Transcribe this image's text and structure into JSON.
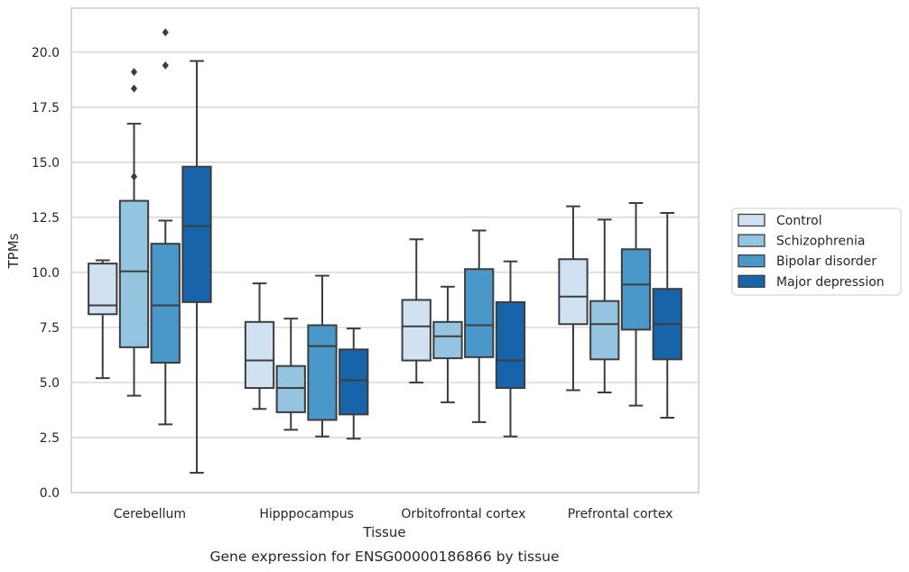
{
  "chart_data": {
    "type": "box",
    "title": "",
    "caption": "Gene expression for ENSG00000186866 by tissue",
    "xlabel": "Tissue",
    "ylabel": "TPMs",
    "ylim": [
      0,
      22
    ],
    "yticks": [
      0.0,
      2.5,
      5.0,
      7.5,
      10.0,
      12.5,
      15.0,
      17.5,
      20.0
    ],
    "ytick_labels": [
      "0.0",
      "2.5",
      "5.0",
      "7.5",
      "10.0",
      "12.5",
      "15.0",
      "17.5",
      "20.0"
    ],
    "grid": "horizontal",
    "legend_placement": "right-center",
    "categories": [
      "Cerebellum",
      "Hipppocampus",
      "Orbitofrontal cortex",
      "Prefrontal cortex"
    ],
    "series": [
      {
        "name": "Control",
        "color": "#d0e1f2",
        "boxes": [
          {
            "whisker_low": 5.2,
            "q1": 8.1,
            "median": 8.5,
            "q3": 10.4,
            "whisker_high": 10.55,
            "outliers": []
          },
          {
            "whisker_low": 3.8,
            "q1": 4.75,
            "median": 6.0,
            "q3": 7.75,
            "whisker_high": 9.5,
            "outliers": []
          },
          {
            "whisker_low": 5.0,
            "q1": 6.0,
            "median": 7.55,
            "q3": 8.75,
            "whisker_high": 11.5,
            "outliers": []
          },
          {
            "whisker_low": 4.65,
            "q1": 7.65,
            "median": 8.9,
            "q3": 10.6,
            "whisker_high": 13.0,
            "outliers": []
          }
        ]
      },
      {
        "name": "Schizophrenia",
        "color": "#94c4df",
        "boxes": [
          {
            "whisker_low": 4.4,
            "q1": 6.6,
            "median": 10.05,
            "q3": 13.25,
            "whisker_high": 16.75,
            "outliers": [
              14.35,
              18.35,
              19.1
            ]
          },
          {
            "whisker_low": 2.85,
            "q1": 3.65,
            "median": 4.75,
            "q3": 5.75,
            "whisker_high": 7.9,
            "outliers": []
          },
          {
            "whisker_low": 4.1,
            "q1": 6.1,
            "median": 7.1,
            "q3": 7.75,
            "whisker_high": 9.35,
            "outliers": []
          },
          {
            "whisker_low": 4.55,
            "q1": 6.05,
            "median": 7.65,
            "q3": 8.7,
            "whisker_high": 12.4,
            "outliers": []
          }
        ]
      },
      {
        "name": "Bipolar disorder",
        "color": "#4a98c9",
        "boxes": [
          {
            "whisker_low": 3.1,
            "q1": 5.9,
            "median": 8.5,
            "q3": 11.3,
            "whisker_high": 12.35,
            "outliers": [
              19.4,
              20.9
            ]
          },
          {
            "whisker_low": 2.55,
            "q1": 3.3,
            "median": 6.65,
            "q3": 7.6,
            "whisker_high": 9.85,
            "outliers": []
          },
          {
            "whisker_low": 3.2,
            "q1": 6.15,
            "median": 7.6,
            "q3": 10.15,
            "whisker_high": 11.9,
            "outliers": []
          },
          {
            "whisker_low": 3.95,
            "q1": 7.4,
            "median": 9.45,
            "q3": 11.05,
            "whisker_high": 13.15,
            "outliers": []
          }
        ]
      },
      {
        "name": "Major depression",
        "color": "#1764ab",
        "boxes": [
          {
            "whisker_low": 0.9,
            "q1": 8.65,
            "median": 12.1,
            "q3": 14.8,
            "whisker_high": 19.6,
            "outliers": []
          },
          {
            "whisker_low": 2.45,
            "q1": 3.55,
            "median": 5.1,
            "q3": 6.5,
            "whisker_high": 7.45,
            "outliers": []
          },
          {
            "whisker_low": 2.55,
            "q1": 4.75,
            "median": 6.0,
            "q3": 8.65,
            "whisker_high": 10.5,
            "outliers": []
          },
          {
            "whisker_low": 3.4,
            "q1": 6.05,
            "median": 7.65,
            "q3": 9.25,
            "whisker_high": 12.7,
            "outliers": []
          }
        ]
      }
    ]
  }
}
